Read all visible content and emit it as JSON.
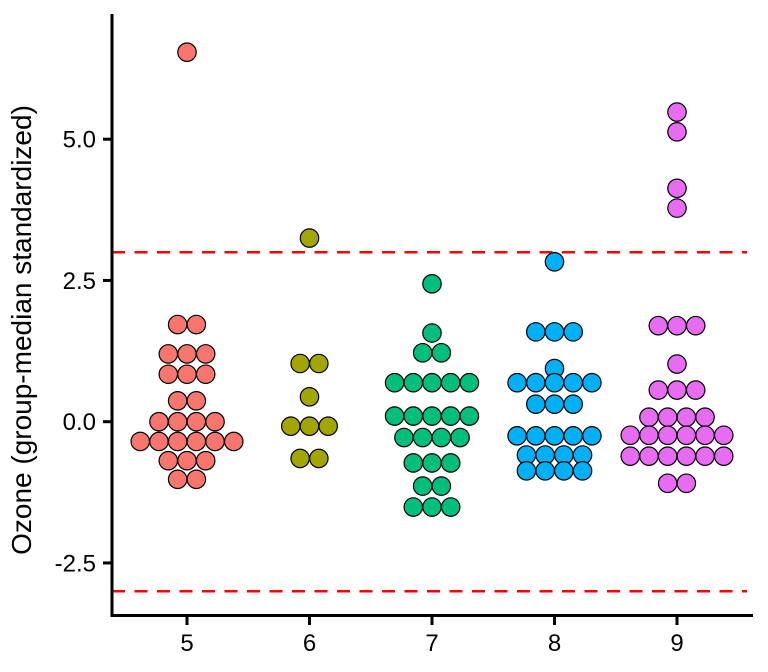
{
  "chart_data": {
    "type": "scatter",
    "subtype": "grouped-dotplot",
    "title": "",
    "xlabel": "",
    "ylabel": "Ozone (group-median standardized)",
    "x_ticks": [
      "5",
      "6",
      "7",
      "8",
      "9"
    ],
    "y_ticks": [
      "5.0",
      "2.5",
      "0.0",
      "-2.5"
    ],
    "ylim": [
      -3.55,
      7.2
    ],
    "grid": "off",
    "legend": "none",
    "hline_color": "#FF0000",
    "hline_style": "dashed",
    "hlines": [
      3.0,
      -3.0
    ],
    "groups": [
      {
        "label": "5",
        "color": "#F8766D",
        "rows": [
          {
            "value": 6.54,
            "count": 1
          },
          {
            "value": 1.72,
            "count": 2
          },
          {
            "value": 1.2,
            "count": 3
          },
          {
            "value": 0.84,
            "count": 3
          },
          {
            "value": 0.37,
            "count": 2
          },
          {
            "value": 0.0,
            "count": 4
          },
          {
            "value": -0.35,
            "count": 6
          },
          {
            "value": -0.69,
            "count": 3
          },
          {
            "value": -1.02,
            "count": 2
          }
        ]
      },
      {
        "label": "6",
        "color": "#A3A500",
        "rows": [
          {
            "value": 3.25,
            "count": 1
          },
          {
            "value": 1.03,
            "count": 2
          },
          {
            "value": 0.44,
            "count": 1
          },
          {
            "value": -0.08,
            "count": 3
          },
          {
            "value": -0.65,
            "count": 2
          }
        ]
      },
      {
        "label": "7",
        "color": "#00BF7D",
        "rows": [
          {
            "value": 2.44,
            "count": 1
          },
          {
            "value": 1.57,
            "count": 1
          },
          {
            "value": 1.22,
            "count": 2
          },
          {
            "value": 0.69,
            "count": 5
          },
          {
            "value": 0.1,
            "count": 5
          },
          {
            "value": -0.28,
            "count": 4
          },
          {
            "value": -0.73,
            "count": 3
          },
          {
            "value": -1.14,
            "count": 2
          },
          {
            "value": -1.51,
            "count": 3
          }
        ]
      },
      {
        "label": "8",
        "color": "#00B0F6",
        "rows": [
          {
            "value": 2.83,
            "count": 1
          },
          {
            "value": 1.59,
            "count": 3
          },
          {
            "value": 0.94,
            "count": 1
          },
          {
            "value": 0.69,
            "count": 5
          },
          {
            "value": 0.31,
            "count": 3
          },
          {
            "value": -0.25,
            "count": 5
          },
          {
            "value": -0.59,
            "count": 4
          },
          {
            "value": -0.87,
            "count": 4
          }
        ]
      },
      {
        "label": "9",
        "color": "#E76BF3",
        "rows": [
          {
            "value": 5.48,
            "count": 1
          },
          {
            "value": 5.13,
            "count": 1
          },
          {
            "value": 4.13,
            "count": 1
          },
          {
            "value": 3.78,
            "count": 1
          },
          {
            "value": 1.7,
            "count": 3
          },
          {
            "value": 1.02,
            "count": 1
          },
          {
            "value": 0.56,
            "count": 3
          },
          {
            "value": 0.08,
            "count": 4
          },
          {
            "value": -0.24,
            "count": 6
          },
          {
            "value": -0.61,
            "count": 6
          },
          {
            "value": -1.09,
            "count": 2
          }
        ]
      }
    ]
  }
}
